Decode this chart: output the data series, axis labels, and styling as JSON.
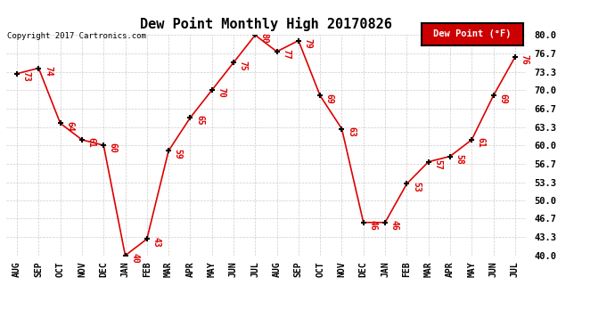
{
  "title": "Dew Point Monthly High 20170826",
  "copyright": "Copyright 2017 Cartronics.com",
  "legend_label": "Dew Point (°F)",
  "categories": [
    "AUG",
    "SEP",
    "OCT",
    "NOV",
    "DEC",
    "JAN",
    "FEB",
    "MAR",
    "APR",
    "MAY",
    "JUN",
    "JUL",
    "AUG",
    "SEP",
    "OCT",
    "NOV",
    "DEC",
    "JAN",
    "FEB",
    "MAR",
    "APR",
    "MAY",
    "JUN",
    "JUL"
  ],
  "values": [
    73,
    74,
    64,
    61,
    60,
    40,
    43,
    59,
    65,
    70,
    75,
    80,
    77,
    79,
    69,
    63,
    46,
    46,
    53,
    57,
    58,
    61,
    69,
    76
  ],
  "ylim_min": 40.0,
  "ylim_max": 80.0,
  "yticks": [
    40.0,
    43.3,
    46.7,
    50.0,
    53.3,
    56.7,
    60.0,
    63.3,
    66.7,
    70.0,
    73.3,
    76.7,
    80.0
  ],
  "line_color": "#dd0000",
  "marker_color": "#000000",
  "label_color": "#dd0000",
  "grid_color": "#cccccc",
  "bg_color": "#ffffff",
  "title_fontsize": 11,
  "legend_bg_color": "#cc0000",
  "legend_text_color": "#ffffff"
}
